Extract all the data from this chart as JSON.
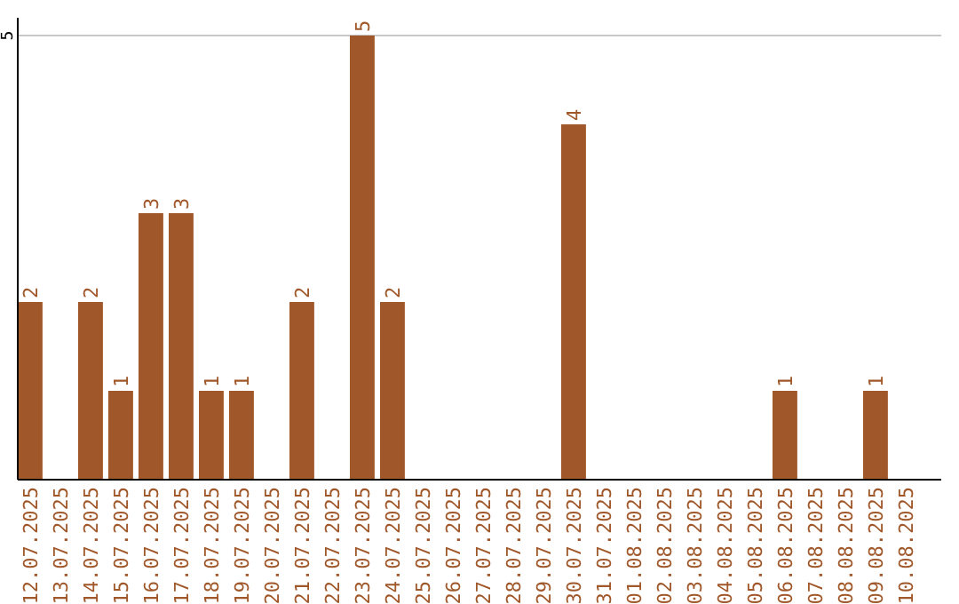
{
  "chart_data": {
    "type": "bar",
    "categories": [
      "12.07.2025",
      "13.07.2025",
      "14.07.2025",
      "15.07.2025",
      "16.07.2025",
      "17.07.2025",
      "18.07.2025",
      "19.07.2025",
      "20.07.2025",
      "21.07.2025",
      "22.07.2025",
      "23.07.2025",
      "24.07.2025",
      "25.07.2025",
      "26.07.2025",
      "27.07.2025",
      "28.07.2025",
      "29.07.2025",
      "30.07.2025",
      "31.07.2025",
      "01.08.2025",
      "02.08.2025",
      "03.08.2025",
      "04.08.2025",
      "05.08.2025",
      "06.08.2025",
      "07.08.2025",
      "08.08.2025",
      "09.08.2025",
      "10.08.2025"
    ],
    "values": [
      2,
      0,
      2,
      1,
      3,
      3,
      1,
      1,
      0,
      2,
      0,
      5,
      2,
      0,
      0,
      0,
      0,
      0,
      4,
      0,
      0,
      0,
      0,
      0,
      0,
      1,
      0,
      0,
      1,
      0
    ],
    "value_labels": [
      "2",
      null,
      "2",
      "1",
      "3",
      "3",
      "1",
      "1",
      null,
      "2",
      null,
      "5",
      "2",
      null,
      null,
      null,
      null,
      null,
      "4",
      null,
      null,
      null,
      null,
      null,
      null,
      "1",
      null,
      null,
      "1",
      null
    ],
    "color": "#a0582a",
    "ylim": [
      0,
      5.2
    ],
    "yticks": [
      5
    ],
    "grid": "y"
  }
}
